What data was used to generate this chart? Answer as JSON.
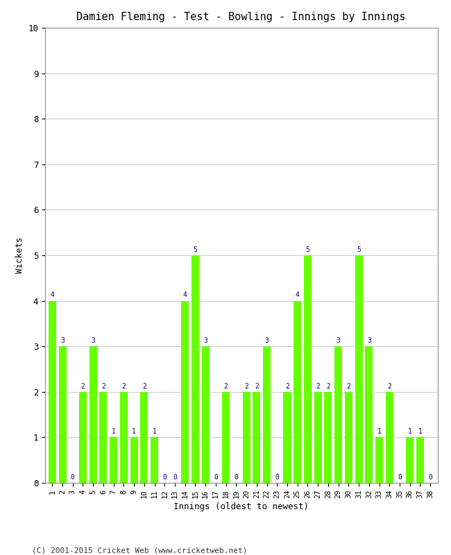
{
  "title": "Damien Fleming - Test - Bowling - Innings by Innings",
  "xlabel": "Innings (oldest to newest)",
  "ylabel": "Wickets",
  "ylim": [
    0,
    10
  ],
  "yticks": [
    0,
    1,
    2,
    3,
    4,
    5,
    6,
    7,
    8,
    9,
    10
  ],
  "bar_color": "#66ff00",
  "label_color": "#000080",
  "background_color": "#ffffff",
  "footer": "(C) 2001-2015 Cricket Web (www.cricketweb.net)",
  "innings": [
    1,
    2,
    3,
    4,
    5,
    6,
    7,
    8,
    9,
    10,
    11,
    12,
    13,
    14,
    15,
    16,
    17,
    18,
    19,
    20,
    21,
    22,
    23,
    24,
    25,
    26,
    27,
    28,
    29,
    30,
    31,
    32,
    33,
    34,
    35,
    36,
    37,
    38
  ],
  "wickets": [
    4,
    3,
    0,
    2,
    3,
    2,
    1,
    2,
    1,
    2,
    1,
    0,
    0,
    4,
    5,
    3,
    0,
    2,
    0,
    2,
    2,
    3,
    0,
    2,
    4,
    5,
    2,
    2,
    3,
    2,
    5,
    3,
    1,
    2,
    0,
    1,
    1,
    0
  ]
}
